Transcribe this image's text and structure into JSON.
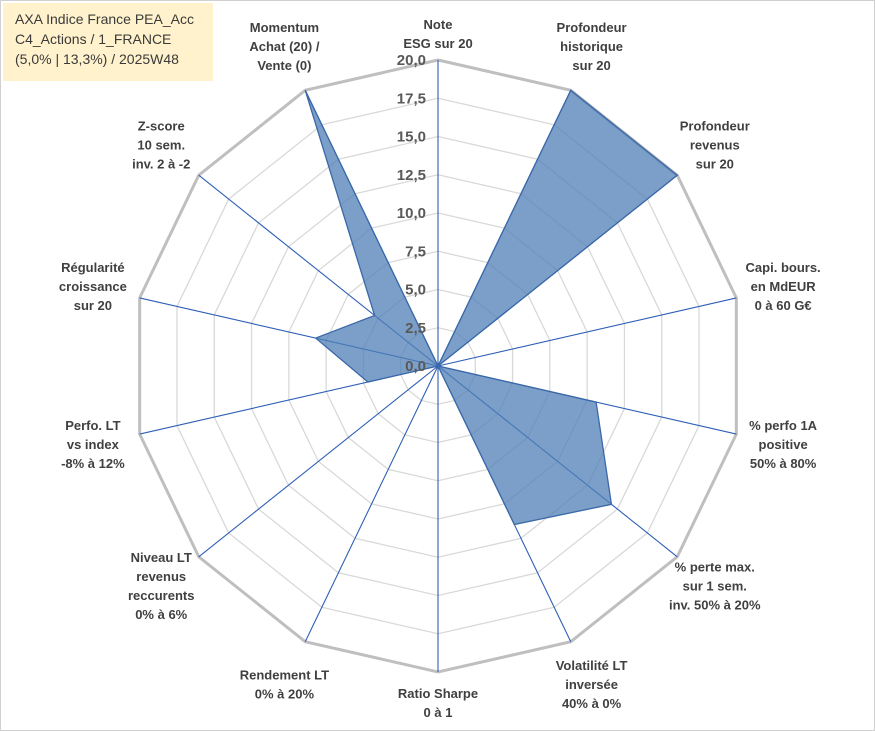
{
  "title_lines": [
    "AXA Indice France PEA_Acc",
    "C4_Actions / 1_FRANCE",
    "(5,0% | 13,3%) / 2025W48"
  ],
  "colors": {
    "title_background": "#fff2cc",
    "series_fill": "#4f7fb5",
    "series_line": "#3a68a8",
    "axis_spokes": "#2e5fb5",
    "grid_outer": "#bfbfbf",
    "grid_inner": "#d9d9d9"
  },
  "chart_data": {
    "type": "radar",
    "range": [
      0,
      20
    ],
    "tick_step": 2.5,
    "tick_labels": [
      "0,0",
      "2,5",
      "5,0",
      "7,5",
      "10,0",
      "12,5",
      "15,0",
      "17,5",
      "20,0"
    ],
    "labeled_ticks": [
      0,
      2.5,
      5,
      7.5,
      10,
      12.5,
      15,
      17.5,
      20
    ],
    "axes": [
      [
        "Note",
        "ESG sur 20"
      ],
      [
        "Profondeur",
        "historique",
        "sur 20"
      ],
      [
        "Profondeur",
        "revenus",
        "sur 20"
      ],
      [
        "Capi. bours.",
        "en MdEUR",
        "0 à 60 G€"
      ],
      [
        "% perfo 1A",
        "positive",
        "50% à 80%"
      ],
      [
        "% perte max.",
        "sur 1 sem.",
        "inv. 50% à 20%"
      ],
      [
        "Volatilité LT",
        "inversée",
        "40% à 0%"
      ],
      [
        "Ratio Sharpe",
        "0 à 1"
      ],
      [
        "Rendement LT",
        "0% à 20%"
      ],
      [
        "Niveau LT",
        "revenus",
        "reccurents",
        "0% à 6%"
      ],
      [
        "Perfo. LT",
        "vs index",
        "-8% à 12%"
      ],
      [
        "Régularité",
        "croissance",
        "sur 20"
      ],
      [
        "Z-score",
        "10 sem.",
        "inv. 2 à -2"
      ],
      [
        "Momentum",
        "Achat (20) /",
        "Vente (0)"
      ]
    ],
    "values": [
      0,
      20,
      20,
      0,
      10.6,
      14.5,
      11.5,
      0,
      0,
      0,
      4.7,
      8.2,
      5.3,
      20
    ],
    "grid": true,
    "legend": "none"
  }
}
